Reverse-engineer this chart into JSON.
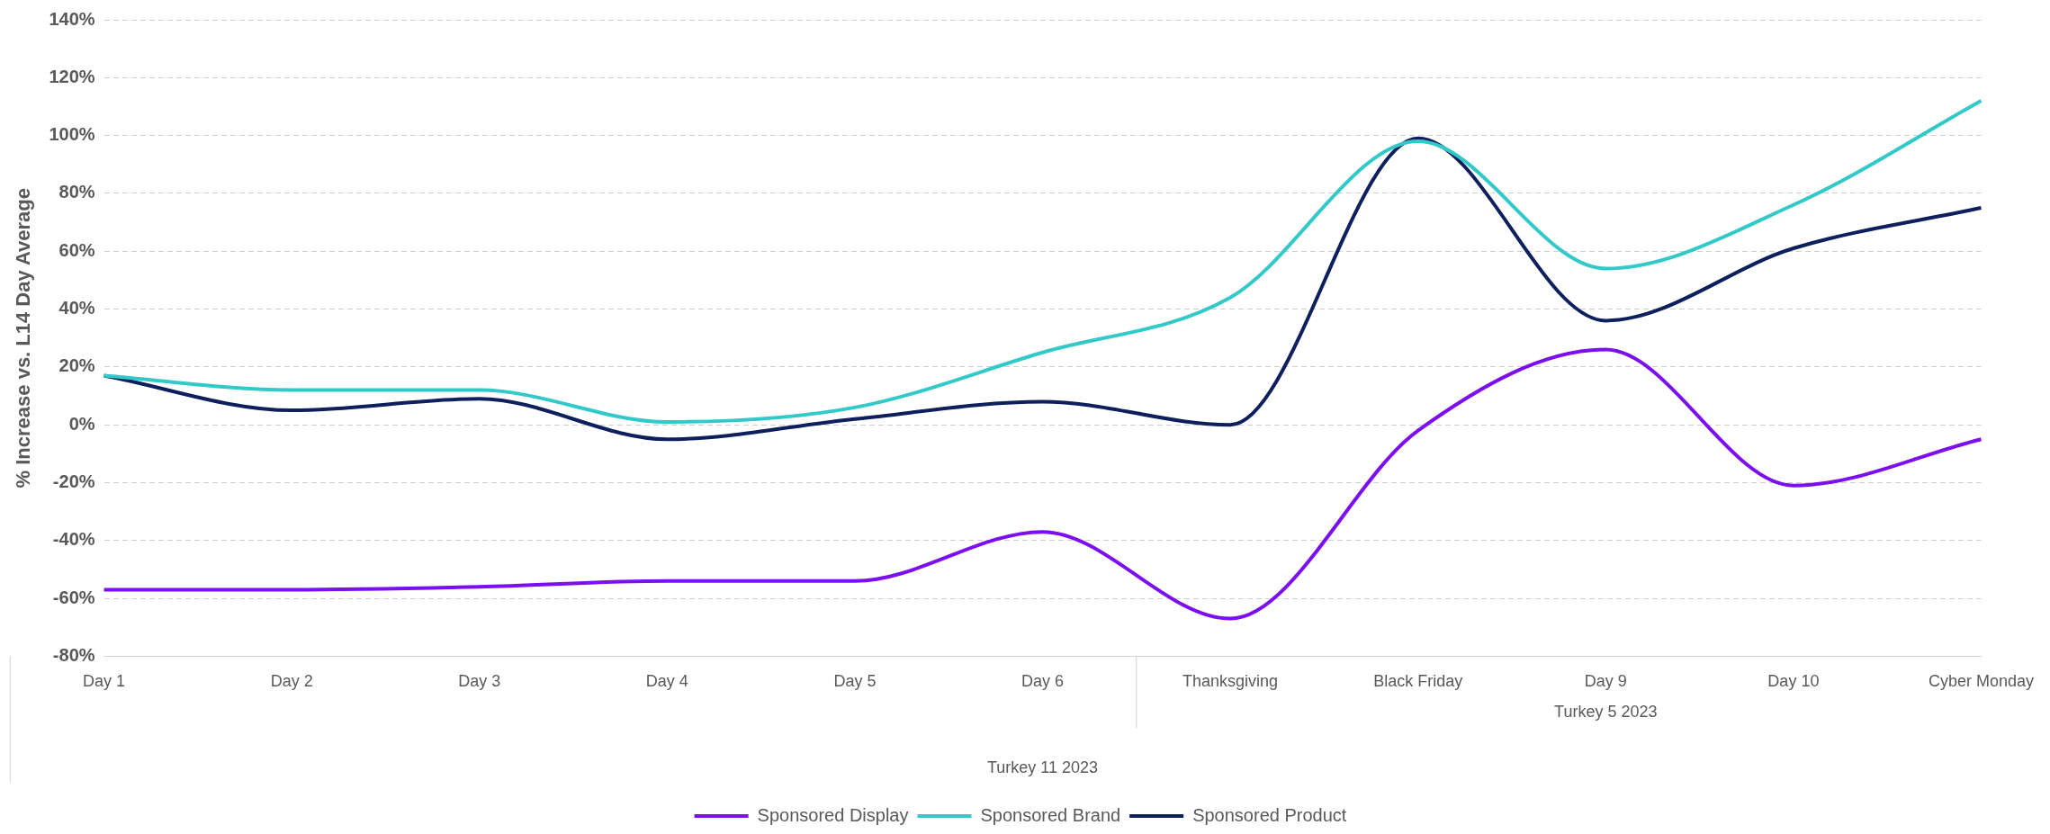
{
  "chart_data": {
    "type": "line",
    "ylabel": "% Increase vs. L14 Day Average",
    "categories": [
      "Day 1",
      "Day 2",
      "Day 3",
      "Day 4",
      "Day 5",
      "Day 6",
      "Thanksgiving",
      "Black Friday",
      "Day 9",
      "Day 10",
      "Cyber Monday"
    ],
    "series": [
      {
        "name": "Sponsored Display",
        "color": "#7b0fef",
        "values": [
          -57,
          -57,
          -56,
          -54,
          -54,
          -37,
          -67,
          -2,
          26,
          -21,
          -5
        ]
      },
      {
        "name": "Sponsored Brand",
        "color": "#33c9c9",
        "values": [
          17,
          12,
          12,
          1,
          6,
          25,
          44,
          98,
          54,
          76,
          112
        ]
      },
      {
        "name": "Sponsored Product",
        "color": "#0d1f5c",
        "values": [
          17,
          5,
          9,
          -5,
          2,
          8,
          0,
          99,
          36,
          61,
          75
        ]
      }
    ],
    "ylim": [
      -80,
      140
    ],
    "yticks": [
      {
        "value": -80,
        "label": "-80%"
      },
      {
        "value": -60,
        "label": "-60%"
      },
      {
        "value": -40,
        "label": "-40%"
      },
      {
        "value": -20,
        "label": "-20%"
      },
      {
        "value": 0,
        "label": "0%"
      },
      {
        "value": 20,
        "label": "20%"
      },
      {
        "value": 40,
        "label": "40%"
      },
      {
        "value": 60,
        "label": "60%"
      },
      {
        "value": 80,
        "label": "80%"
      },
      {
        "value": 100,
        "label": "100%"
      },
      {
        "value": 120,
        "label": "120%"
      },
      {
        "value": 140,
        "label": "140%"
      }
    ],
    "annotations": [
      "Turkey 11 2023",
      "Turkey 5 2023"
    ],
    "grid": "y",
    "legend": "bottom",
    "marker": "none",
    "line_style": "solid"
  }
}
